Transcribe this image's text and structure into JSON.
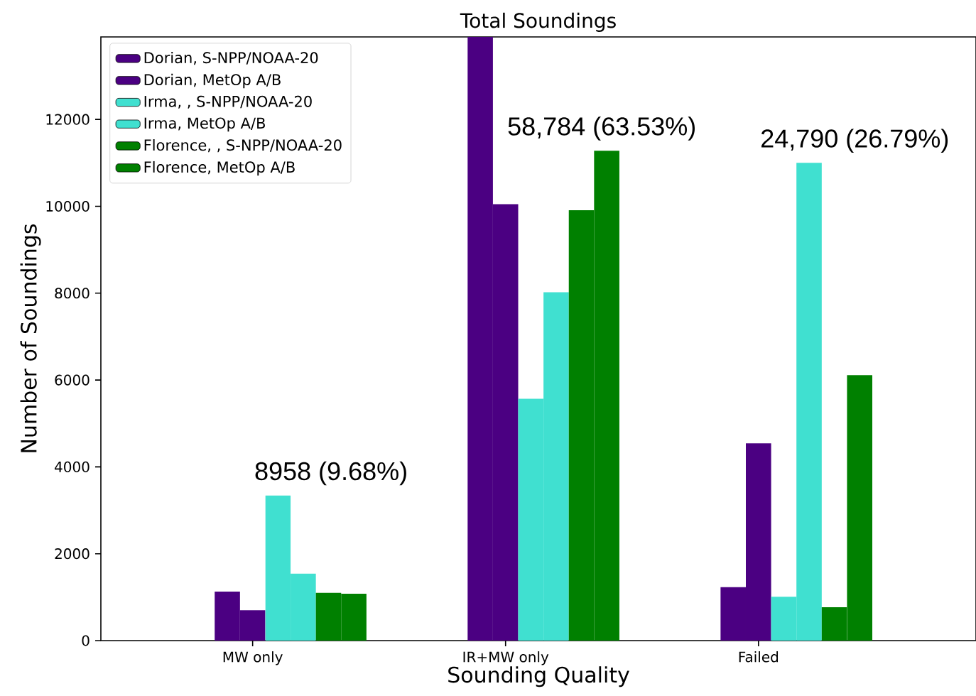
{
  "chart_data": {
    "type": "bar",
    "title": "Total Soundings",
    "xlabel": "Sounding Quality",
    "ylabel": "Number of Soundings",
    "categories": [
      "MW only",
      "IR+MW only",
      "Failed"
    ],
    "series": [
      {
        "name": "Dorian, S-NPP/NOAA-20",
        "color": "#4b0082",
        "values": [
          1130,
          13900,
          1230
        ]
      },
      {
        "name": "Dorian, MetOp A/B",
        "color": "#4b0082",
        "values": [
          700,
          10050,
          4540
        ]
      },
      {
        "name": "Irma, , S-NPP/NOAA-20",
        "color": "#40e0d0",
        "values": [
          3340,
          5570,
          1010
        ]
      },
      {
        "name": "Irma, MetOp A/B",
        "color": "#40e0d0",
        "values": [
          1540,
          8020,
          11000
        ]
      },
      {
        "name": "Florence, , S-NPP/NOAA-20",
        "color": "#008000",
        "values": [
          1100,
          9910,
          770
        ]
      },
      {
        "name": "Florence, MetOp A/B",
        "color": "#008000",
        "values": [
          1080,
          11280,
          6110
        ]
      }
    ],
    "ylim": [
      0,
      13900
    ],
    "yticks": [
      0,
      2000,
      4000,
      6000,
      8000,
      10000,
      12000
    ],
    "grid": false,
    "legend": "top left",
    "annotations": [
      "8958 (9.68%)",
      "58,784 (63.53%)",
      "24,790 (26.79%)"
    ]
  }
}
